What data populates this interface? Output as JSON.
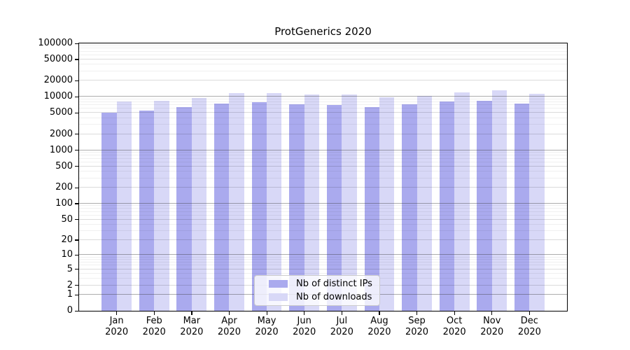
{
  "chart_data": {
    "type": "bar",
    "title": "ProtGenerics 2020",
    "categories": [
      "Jan",
      "Feb",
      "Mar",
      "Apr",
      "May",
      "Jun",
      "Jul",
      "Aug",
      "Sep",
      "Oct",
      "Nov",
      "Dec"
    ],
    "year_label": "2020",
    "series": [
      {
        "name": "Nb of distinct IPs",
        "color": "#aaaaee",
        "values": [
          5100,
          5600,
          6400,
          7600,
          7950,
          7200,
          6950,
          6500,
          7250,
          8250,
          8550,
          7600
        ]
      },
      {
        "name": "Nb of downloads",
        "color": "#d8d8f7",
        "values": [
          8250,
          8500,
          9500,
          11600,
          11800,
          11050,
          10950,
          9700,
          10500,
          12200,
          13400,
          11300
        ]
      }
    ],
    "yscale": "log1p",
    "ylim": [
      0,
      100000
    ],
    "yticks": [
      0,
      1,
      2,
      5,
      10,
      20,
      50,
      100,
      200,
      500,
      1000,
      2000,
      5000,
      10000,
      20000,
      50000,
      100000
    ],
    "ytick_labels": [
      "0",
      "1",
      "2",
      "5",
      "10",
      "20",
      "50",
      "100",
      "200",
      "500",
      "1000",
      "2000",
      "5000",
      "10000",
      "20000",
      "50000",
      "100000"
    ],
    "xlabel": "",
    "ylabel": "",
    "grid": true,
    "legend_position": "lower-center"
  },
  "colors": {
    "distinct_ips_bar": "#aaaaee",
    "downloads_bar": "#d8d8f7",
    "axis": "#000000",
    "major_gridline": "#adadad",
    "minor_gridline": "#efefef",
    "legend_border": "#cccccc"
  }
}
